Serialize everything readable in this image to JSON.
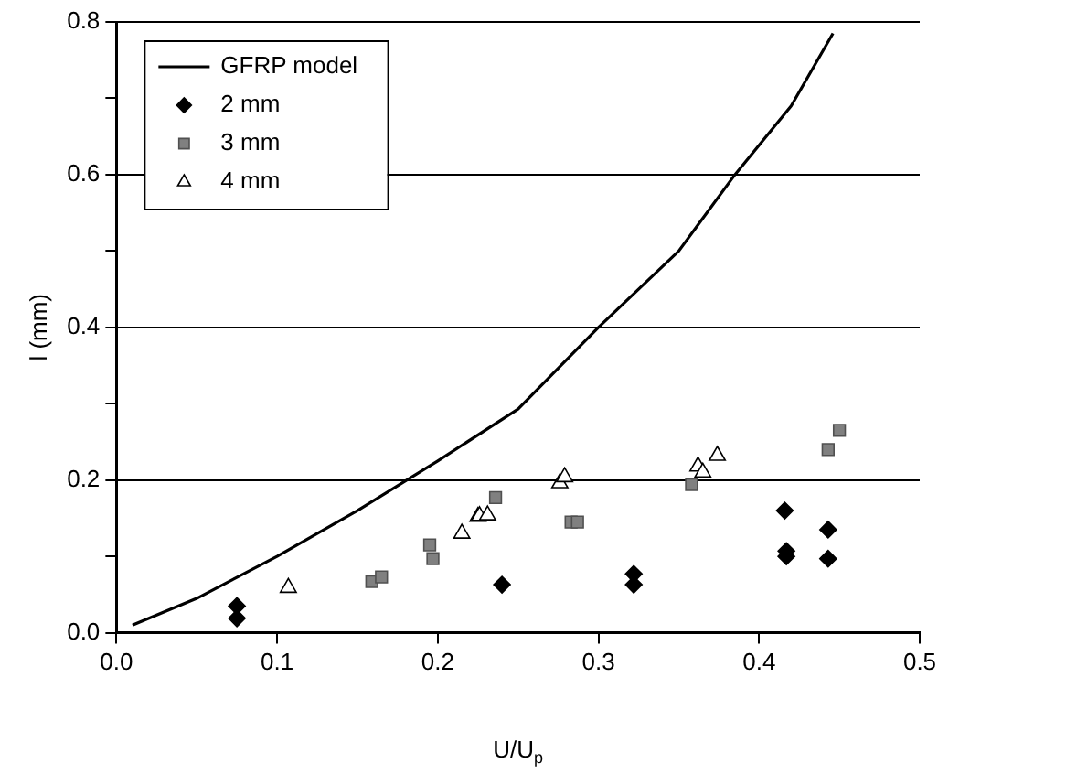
{
  "chart_data": {
    "type": "scatter",
    "xlabel": "U/U$_{p}$",
    "ylabel": "l (mm)",
    "xlim": [
      0,
      0.5
    ],
    "xticks": [
      {
        "value": 0,
        "label": "0.0"
      },
      0.1,
      0.2,
      0.3,
      0.4,
      0.5
    ],
    "ylim": [
      0,
      0.8
    ],
    "yticks": [
      {
        "value": 0,
        "label": "0.0"
      },
      {
        "value": 0.1,
        "label": null
      },
      0.2,
      {
        "value": 0.3,
        "label": null
      },
      0.4,
      {
        "value": 0.5,
        "label": null
      },
      0.6,
      {
        "value": 0.7,
        "label": null
      },
      0.8
    ],
    "grid": "y",
    "legend": "top left",
    "series": [
      {
        "name": "GFRP model",
        "type": "line",
        "color": "#000000",
        "marker": "none",
        "line_style": "solid",
        "x": [
          0.01,
          0.05,
          0.1,
          0.15,
          0.2,
          0.25,
          0.3,
          0.35,
          0.385,
          0.42,
          0.446
        ],
        "values": [
          0.01,
          0.045,
          0.1,
          0.16,
          0.225,
          0.293,
          0.4,
          0.5,
          0.6,
          0.69,
          0.785
        ]
      },
      {
        "name": "2 mm",
        "color": "#000000",
        "marker": "diamond",
        "x": [
          0.075,
          0.075,
          0.24,
          0.322,
          0.322,
          0.416,
          0.417,
          0.417,
          0.443,
          0.443
        ],
        "values": [
          0.035,
          0.019,
          0.063,
          0.077,
          0.063,
          0.16,
          0.107,
          0.1,
          0.135,
          0.097
        ]
      },
      {
        "name": "3 mm",
        "color": "#808080",
        "marker": "square",
        "x": [
          0.159,
          0.165,
          0.195,
          0.197,
          0.236,
          0.283,
          0.287,
          0.358,
          0.443,
          0.45
        ],
        "values": [
          0.067,
          0.073,
          0.115,
          0.097,
          0.177,
          0.145,
          0.145,
          0.194,
          0.24,
          0.265
        ]
      },
      {
        "name": "4 mm",
        "color": "#ffffff",
        "marker": "triangle",
        "x": [
          0.107,
          0.215,
          0.225,
          0.226,
          0.231,
          0.276,
          0.279,
          0.362,
          0.365,
          0.374
        ],
        "values": [
          0.059,
          0.13,
          0.152,
          0.153,
          0.154,
          0.196,
          0.204,
          0.218,
          0.21,
          0.232
        ]
      }
    ]
  }
}
